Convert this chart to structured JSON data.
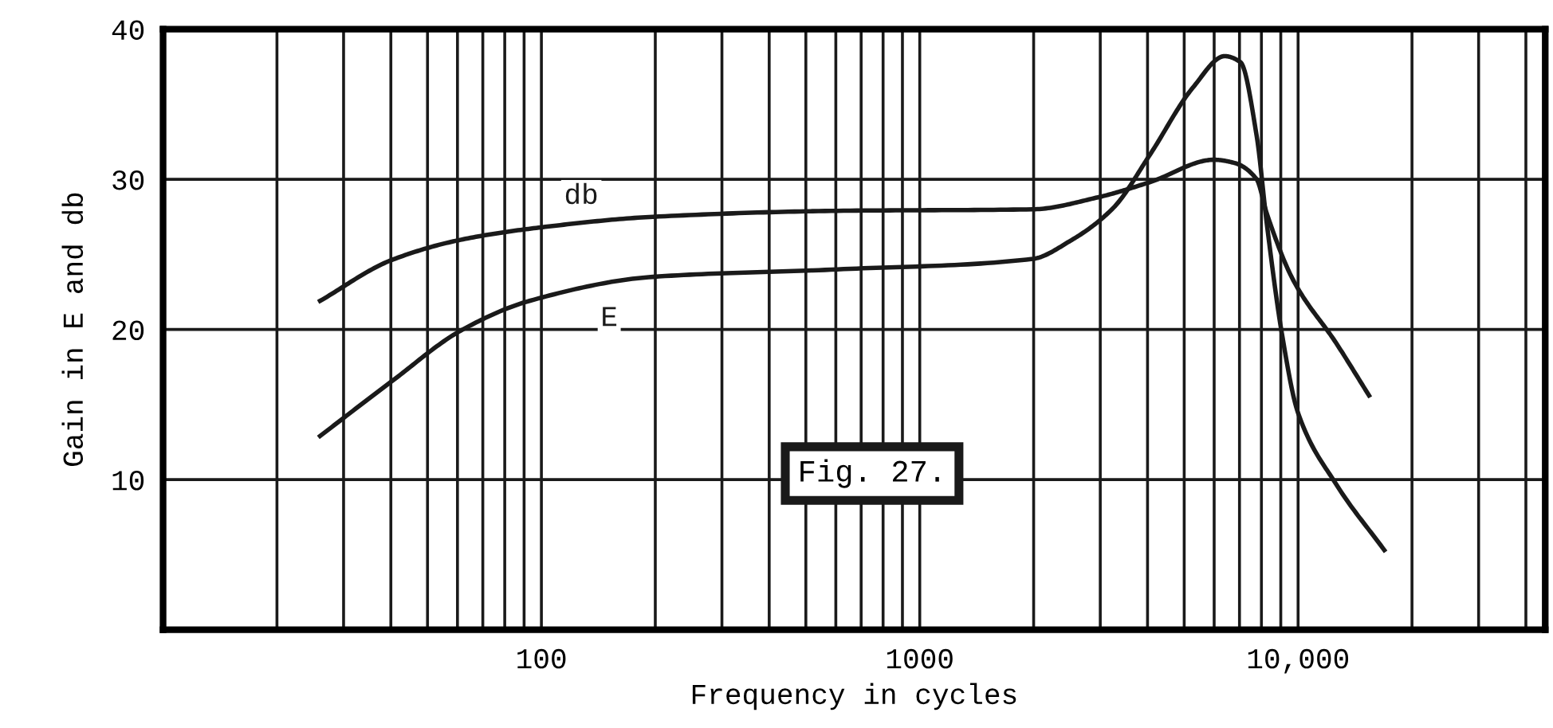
{
  "chart_data": {
    "type": "line",
    "xlabel": "Frequency in cycles",
    "ylabel": "Gain in E and db",
    "log": "x",
    "grid": true,
    "marker": "none",
    "line_style": "solid",
    "xlim": [
      10,
      45000
    ],
    "ylim": [
      0,
      40
    ],
    "xticks": [
      {
        "value": 20,
        "label": null
      },
      {
        "value": 30,
        "label": null
      },
      {
        "value": 40,
        "label": null
      },
      {
        "value": 50,
        "label": null
      },
      {
        "value": 60,
        "label": null
      },
      {
        "value": 70,
        "label": null
      },
      {
        "value": 80,
        "label": null
      },
      {
        "value": 90,
        "label": null
      },
      {
        "value": 100,
        "label": "100"
      },
      {
        "value": 200,
        "label": null
      },
      {
        "value": 300,
        "label": null
      },
      {
        "value": 400,
        "label": null
      },
      {
        "value": 500,
        "label": null
      },
      {
        "value": 600,
        "label": null
      },
      {
        "value": 700,
        "label": null
      },
      {
        "value": 800,
        "label": null
      },
      {
        "value": 900,
        "label": null
      },
      {
        "value": 1000,
        "label": "1000"
      },
      {
        "value": 2000,
        "label": null
      },
      {
        "value": 3000,
        "label": null
      },
      {
        "value": 4000,
        "label": null
      },
      {
        "value": 5000,
        "label": null
      },
      {
        "value": 6000,
        "label": null
      },
      {
        "value": 7000,
        "label": null
      },
      {
        "value": 8000,
        "label": null
      },
      {
        "value": 9000,
        "label": null
      },
      {
        "value": 10000,
        "label": "10,000"
      },
      {
        "value": 20000,
        "label": null
      },
      {
        "value": 30000,
        "label": null
      },
      {
        "value": 40000,
        "label": null
      }
    ],
    "yticks": [
      10,
      20,
      30,
      40
    ],
    "series": [
      {
        "name": "db",
        "color": "#1a1a1a",
        "x": [
          26,
          40,
          62,
          100,
          197,
          605,
          1990,
          2960,
          4050,
          6000,
          6760,
          7770,
          8270,
          9700,
          12600,
          15400
        ],
        "values": [
          21.9,
          24.6,
          26.0,
          26.8,
          27.5,
          27.9,
          28.0,
          28.8,
          29.8,
          31.3,
          31.1,
          30.0,
          27.7,
          23.3,
          19.1,
          15.6
        ]
      },
      {
        "name": "E",
        "color": "#1a1a1a",
        "x": [
          26,
          40,
          62,
          93,
          197,
          605,
          1990,
          2500,
          3250,
          4050,
          5270,
          6400,
          7040,
          7770,
          8270,
          9050,
          9980,
          12600,
          16900
        ],
        "values": [
          12.9,
          16.5,
          20.0,
          21.9,
          23.5,
          24.0,
          24.7,
          25.9,
          28.1,
          31.6,
          36.1,
          38.2,
          37.8,
          32.9,
          27.0,
          19.8,
          14.5,
          9.7,
          5.3
        ]
      }
    ],
    "annotations": [
      "Fig. 27."
    ]
  }
}
